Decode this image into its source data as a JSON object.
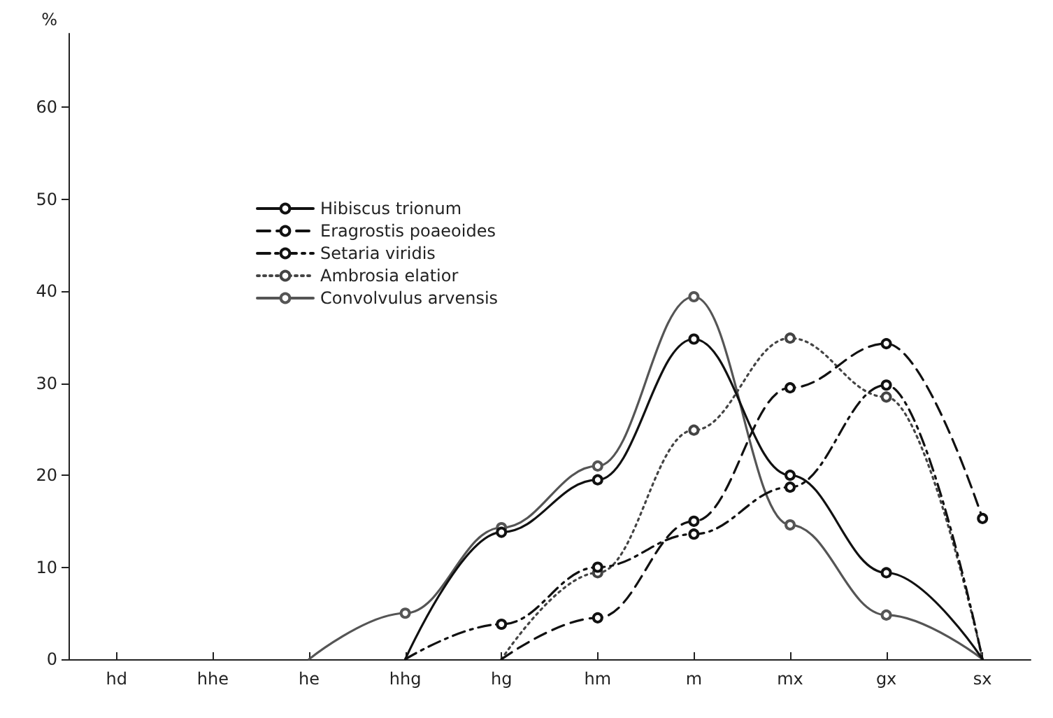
{
  "chart_data": {
    "type": "line",
    "ylabel": "%",
    "categories": [
      "hd",
      "hhe",
      "he",
      "hhg",
      "hg",
      "hm",
      "m",
      "mx",
      "gx",
      "sx"
    ],
    "ylim": [
      0,
      68
    ],
    "yticks": [
      0,
      10,
      20,
      30,
      40,
      50,
      60
    ],
    "grid": false,
    "legend": "top left",
    "marker": "circle",
    "series": [
      {
        "name": "Hibiscus trionum",
        "color": "#111111",
        "line_style": "solid",
        "values": [
          null,
          null,
          null,
          0,
          13.8,
          19.5,
          34.8,
          20,
          9.4,
          0
        ]
      },
      {
        "name": "Eragrostis poaeoides",
        "color": "#111111",
        "line_style": "dashed",
        "values": [
          null,
          null,
          null,
          null,
          0,
          4.5,
          15,
          29.5,
          34.3,
          15.3
        ]
      },
      {
        "name": "Setaria viridis",
        "color": "#111111",
        "line_style": "dashdot",
        "values": [
          null,
          null,
          null,
          0,
          3.8,
          10,
          13.6,
          18.7,
          29.8,
          0
        ]
      },
      {
        "name": "Ambrosia elatior",
        "color": "#444444",
        "line_style": "dotted",
        "values": [
          null,
          null,
          null,
          null,
          0,
          9.4,
          24.9,
          34.9,
          28.5,
          0
        ]
      },
      {
        "name": "Convolvulus arvensis",
        "color": "#555555",
        "line_style": "solid",
        "values": [
          null,
          null,
          0,
          5,
          14.3,
          21,
          39.4,
          14.6,
          4.8,
          0
        ]
      }
    ]
  }
}
